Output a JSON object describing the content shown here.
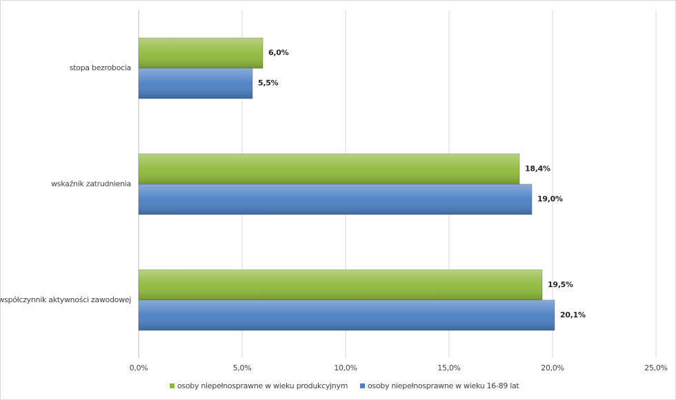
{
  "chart_data": {
    "type": "hbar",
    "categories": [
      "stopa bezrobocia",
      "wskaźnik zatrudnienia",
      "współczynnik aktywności zawodowej"
    ],
    "series": [
      {
        "name": "osoby niepełnosprawne w wieku produkcyjnym",
        "color": "#8fb93a",
        "values": [
          6.0,
          18.4,
          19.5
        ],
        "value_labels": [
          "6,0%",
          "18,4%",
          "19,5%"
        ]
      },
      {
        "name": "osoby niepełnosprawne w wieku 16-89 lat",
        "color": "#4a7fc4",
        "values": [
          5.5,
          19.0,
          20.1
        ],
        "value_labels": [
          "5,5%",
          "19,0%",
          "20,1%"
        ]
      }
    ],
    "xlim": [
      0,
      25
    ],
    "xticks": [
      {
        "value": 0,
        "label": "0,0%"
      },
      {
        "value": 5,
        "label": "5,0%"
      },
      {
        "value": 10,
        "label": "10,0%"
      },
      {
        "value": 15,
        "label": "15,0%"
      },
      {
        "value": 20,
        "label": "20,0%"
      },
      {
        "value": 25,
        "label": "25,0%"
      }
    ],
    "grid": true
  }
}
